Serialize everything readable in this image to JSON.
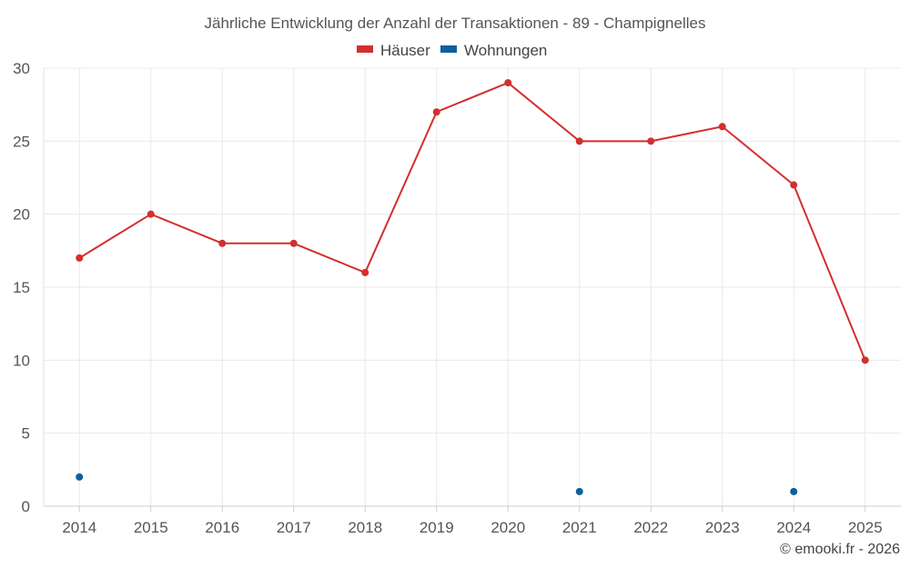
{
  "chart_data": {
    "type": "line",
    "title": "Jährliche Entwicklung der Anzahl der Transaktionen - 89 - Champignelles",
    "categories": [
      "2014",
      "2015",
      "2016",
      "2017",
      "2018",
      "2019",
      "2020",
      "2021",
      "2022",
      "2023",
      "2024",
      "2025"
    ],
    "ylim": [
      0,
      30
    ],
    "yticks": [
      0,
      5,
      10,
      15,
      20,
      25,
      30
    ],
    "grid": true,
    "legend_position": "top-center",
    "series": [
      {
        "name": "Häuser",
        "color": "#d32f2f",
        "line": true,
        "values": [
          17,
          20,
          18,
          18,
          16,
          27,
          29,
          25,
          25,
          26,
          22,
          10
        ]
      },
      {
        "name": "Wohnungen",
        "color": "#0d5f9e",
        "line": false,
        "values": [
          2,
          null,
          null,
          null,
          null,
          null,
          null,
          1,
          null,
          null,
          1,
          null
        ]
      }
    ],
    "credit": "© emooki.fr - 2026"
  }
}
